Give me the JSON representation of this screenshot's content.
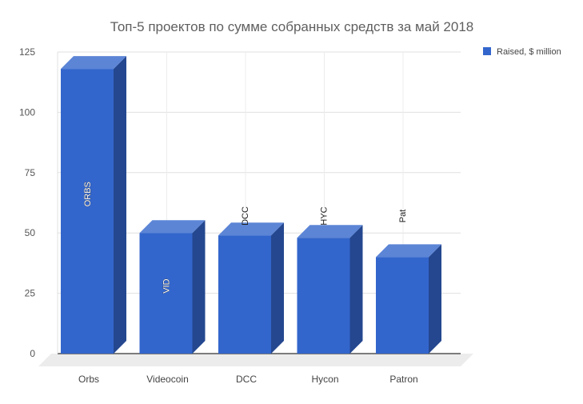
{
  "chart_data": {
    "type": "bar",
    "title": "Топ-5 проектов по сумме собранных средств за май 2018",
    "categories": [
      "Orbs",
      "Videocoin",
      "DCC",
      "Hycon",
      "Patron"
    ],
    "data_labels": [
      "ORBS",
      "VID",
      "DCC",
      "HYC",
      "Pat"
    ],
    "series": [
      {
        "name": "Raised, $ million",
        "values": [
          118,
          50,
          49,
          48,
          40
        ]
      }
    ],
    "yticks": [
      "0",
      "25",
      "50",
      "75",
      "100",
      "125"
    ],
    "ylim": [
      0,
      125
    ],
    "grid": true,
    "legend_position": "top-right",
    "bar_front_color": "#3366cc",
    "bar_top_color": "#5c85d6",
    "bar_side_color": "#24478f"
  }
}
